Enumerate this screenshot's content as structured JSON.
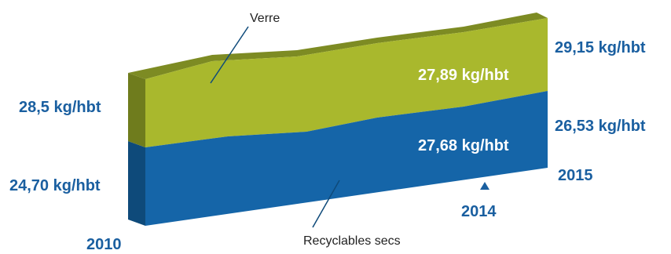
{
  "chart_data": {
    "type": "area",
    "title": "",
    "xlabel": "",
    "ylabel": "",
    "stacked": true,
    "x": [
      "2010",
      "2014",
      "2015"
    ],
    "series": [
      {
        "name": "Recyclables secs",
        "values": [
          24.7,
          27.68,
          26.53
        ],
        "labels": [
          "24,70 kg/hbt",
          "27,68 kg/hbt",
          "26,53 kg/hbt"
        ],
        "color": "#1565a8"
      },
      {
        "name": "Verre",
        "values": [
          28.5,
          27.89,
          29.15
        ],
        "labels": [
          "28,5 kg/hbt",
          "27,89 kg/hbt",
          "29,15 kg/hbt"
        ],
        "color": "#a9b82d"
      }
    ],
    "legend": "callout annotations",
    "grid": false
  }
}
